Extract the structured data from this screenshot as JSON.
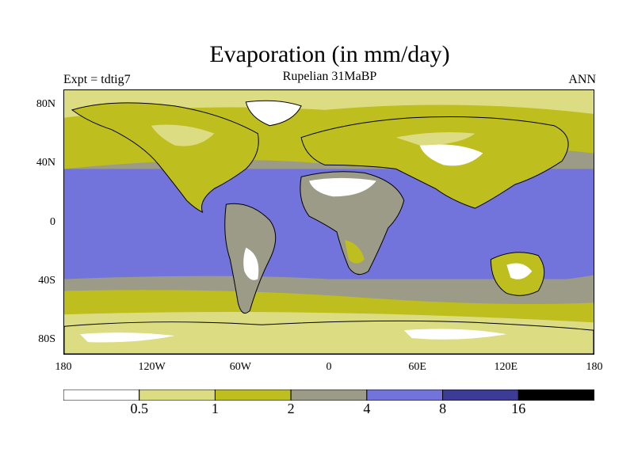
{
  "header": {
    "title": "Evaporation (in mm/day)",
    "subtitle": "Rupelian  31MaBP",
    "expt_label": "Expt = tdtig7",
    "season_label": "ANN"
  },
  "map": {
    "projection": "cylindrical-equidistant",
    "lon_range": [
      -180,
      180
    ],
    "lat_range": [
      -90,
      90
    ],
    "y_tick_labels": [
      {
        "lat": 80,
        "label": "80N"
      },
      {
        "lat": 40,
        "label": "40N"
      },
      {
        "lat": 0,
        "label": "0"
      },
      {
        "lat": -40,
        "label": "40S"
      },
      {
        "lat": -80,
        "label": "80S"
      }
    ],
    "x_tick_labels": [
      {
        "lon": -180,
        "label": "180"
      },
      {
        "lon": -120,
        "label": "120W"
      },
      {
        "lon": -60,
        "label": "60W"
      },
      {
        "lon": 0,
        "label": "0"
      },
      {
        "lon": 60,
        "label": "60E"
      },
      {
        "lon": 120,
        "label": "120E"
      },
      {
        "lon": 180,
        "label": "180"
      }
    ]
  },
  "colorbar": {
    "levels": [
      "0.5",
      "1",
      "2",
      "4",
      "8",
      "16"
    ],
    "colors": [
      "#ffffff",
      "#dcdc82",
      "#bebe1e",
      "#9b9b87",
      "#7373dc",
      "#3c3c96",
      "#000000"
    ]
  }
}
